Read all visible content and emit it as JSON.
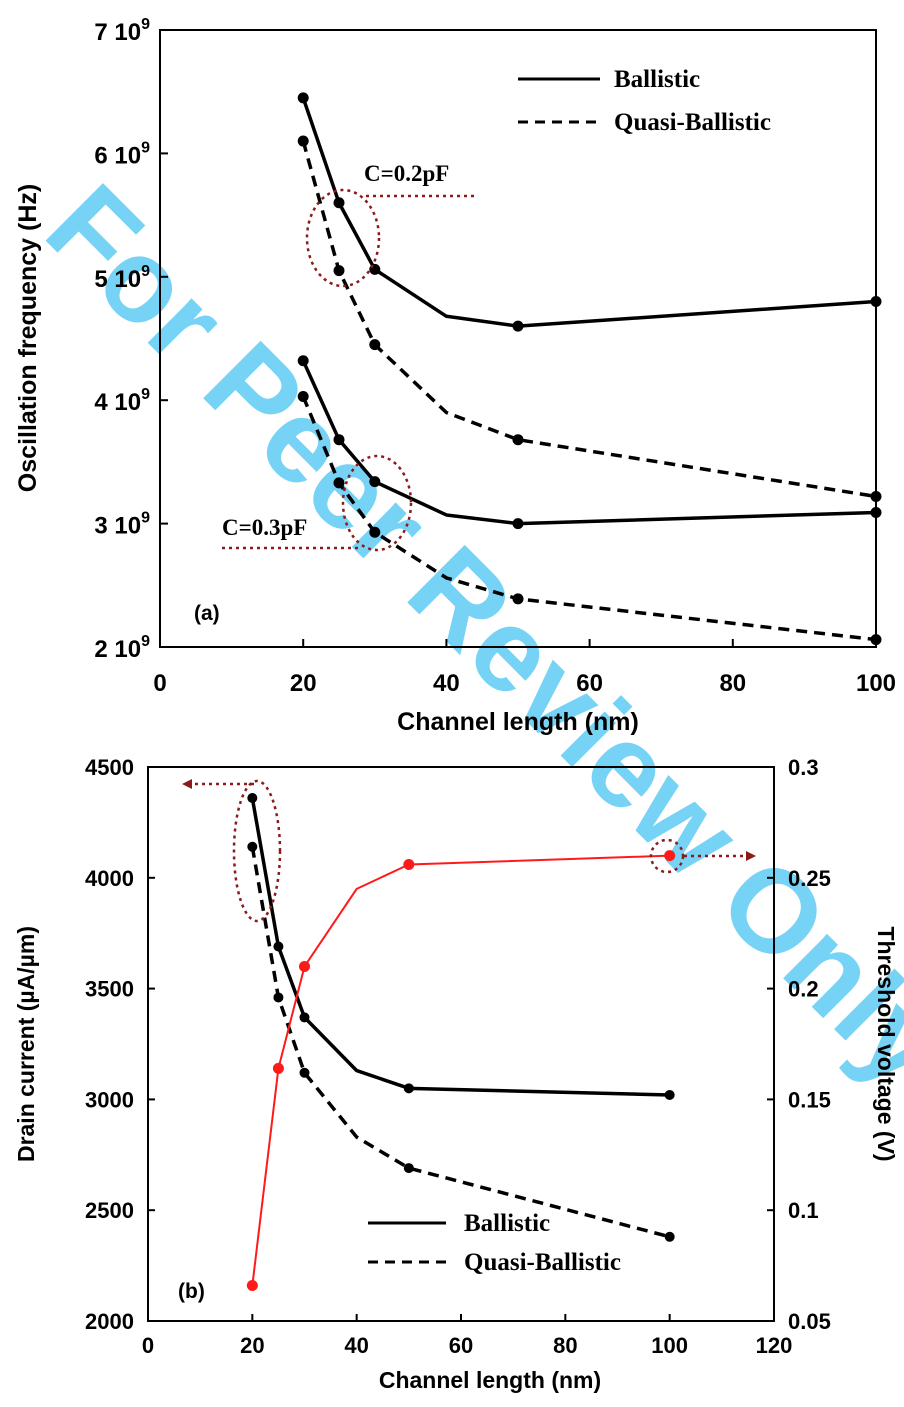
{
  "watermark": "For Peer Review Only",
  "colors": {
    "watermark": "#22b8f0",
    "annotation": "#8b1a1a",
    "vth": "#ff1a1a"
  },
  "chart_data": [
    {
      "type": "line",
      "panel_label": "(a)",
      "xlabel": "Channel length (nm)",
      "ylabel": "Oscillation frequency (Hz)",
      "xlim": [
        0,
        100
      ],
      "ylim": [
        2000000000.0,
        7000000000.0
      ],
      "x_ticks": [
        "0",
        "20",
        "40",
        "60",
        "80",
        "100"
      ],
      "y_ticks": [
        {
          "mant": "2",
          "exp": "9"
        },
        {
          "mant": "3",
          "exp": "9"
        },
        {
          "mant": "4",
          "exp": "9"
        },
        {
          "mant": "5",
          "exp": "9"
        },
        {
          "mant": "6",
          "exp": "9"
        },
        {
          "mant": "7",
          "exp": "9"
        }
      ],
      "legend": {
        "placement": "top-right",
        "entries": [
          "Ballistic",
          "Quasi-Ballistic"
        ]
      },
      "annotations": [
        "C=0.2pF",
        "C=0.3pF"
      ],
      "series": [
        {
          "group": "C=0.2pF",
          "style": "solid",
          "x": [
            20,
            25,
            30,
            40,
            50,
            100
          ],
          "y": [
            6450000000.0,
            5600000000.0,
            5060000000.0,
            4680000000.0,
            4600000000.0,
            4800000000.0
          ]
        },
        {
          "group": "C=0.2pF",
          "style": "dashed",
          "x": [
            20,
            25,
            30,
            40,
            50,
            100
          ],
          "y": [
            6100000000.0,
            5050000000.0,
            4450000000.0,
            3900000000.0,
            3680000000.0,
            3220000000.0
          ]
        },
        {
          "group": "C=0.3pF",
          "style": "solid",
          "x": [
            20,
            25,
            30,
            40,
            50,
            100
          ],
          "y": [
            4320000000.0,
            3680000000.0,
            3340000000.0,
            3070000000.0,
            3000000000.0,
            3090000000.0
          ]
        },
        {
          "group": "C=0.3pF",
          "style": "dashed",
          "x": [
            20,
            25,
            30,
            40,
            50,
            100
          ],
          "y": [
            4030000000.0,
            3330000000.0,
            2930000000.0,
            2560000000.0,
            2390000000.0,
            2060000000.0
          ]
        }
      ]
    },
    {
      "type": "line",
      "panel_label": "(b)",
      "xlabel": "Channel length (nm)",
      "ylabel": "Drain current (µA/µm)",
      "y2label": "Threshold voltage (V)",
      "xlim": [
        0,
        120
      ],
      "ylim": [
        2000,
        4500
      ],
      "y2lim": [
        0.05,
        0.3
      ],
      "x_ticks": [
        "0",
        "20",
        "40",
        "60",
        "80",
        "100",
        "120"
      ],
      "y_ticks": [
        "2000",
        "2500",
        "3000",
        "3500",
        "4000",
        "4500"
      ],
      "y2_ticks": [
        "0.05",
        "0.1",
        "0.15",
        "0.2",
        "0.25",
        "0.3"
      ],
      "legend": {
        "placement": "bottom-center",
        "entries": [
          "Ballistic",
          "Quasi-Ballistic"
        ]
      },
      "series": [
        {
          "axis": "left",
          "style": "solid",
          "x": [
            20,
            25,
            30,
            40,
            50,
            100
          ],
          "y": [
            4360,
            3690,
            3370,
            3130,
            3050,
            3020
          ]
        },
        {
          "axis": "left",
          "style": "dashed",
          "x": [
            20,
            25,
            30,
            40,
            50,
            100
          ],
          "y": [
            4140,
            3460,
            3120,
            2830,
            2690,
            2380
          ]
        },
        {
          "axis": "right",
          "style": "red",
          "x": [
            20,
            25,
            30,
            40,
            50,
            100
          ],
          "y": [
            0.066,
            0.164,
            0.21,
            0.245,
            0.256,
            0.26
          ]
        }
      ]
    }
  ]
}
